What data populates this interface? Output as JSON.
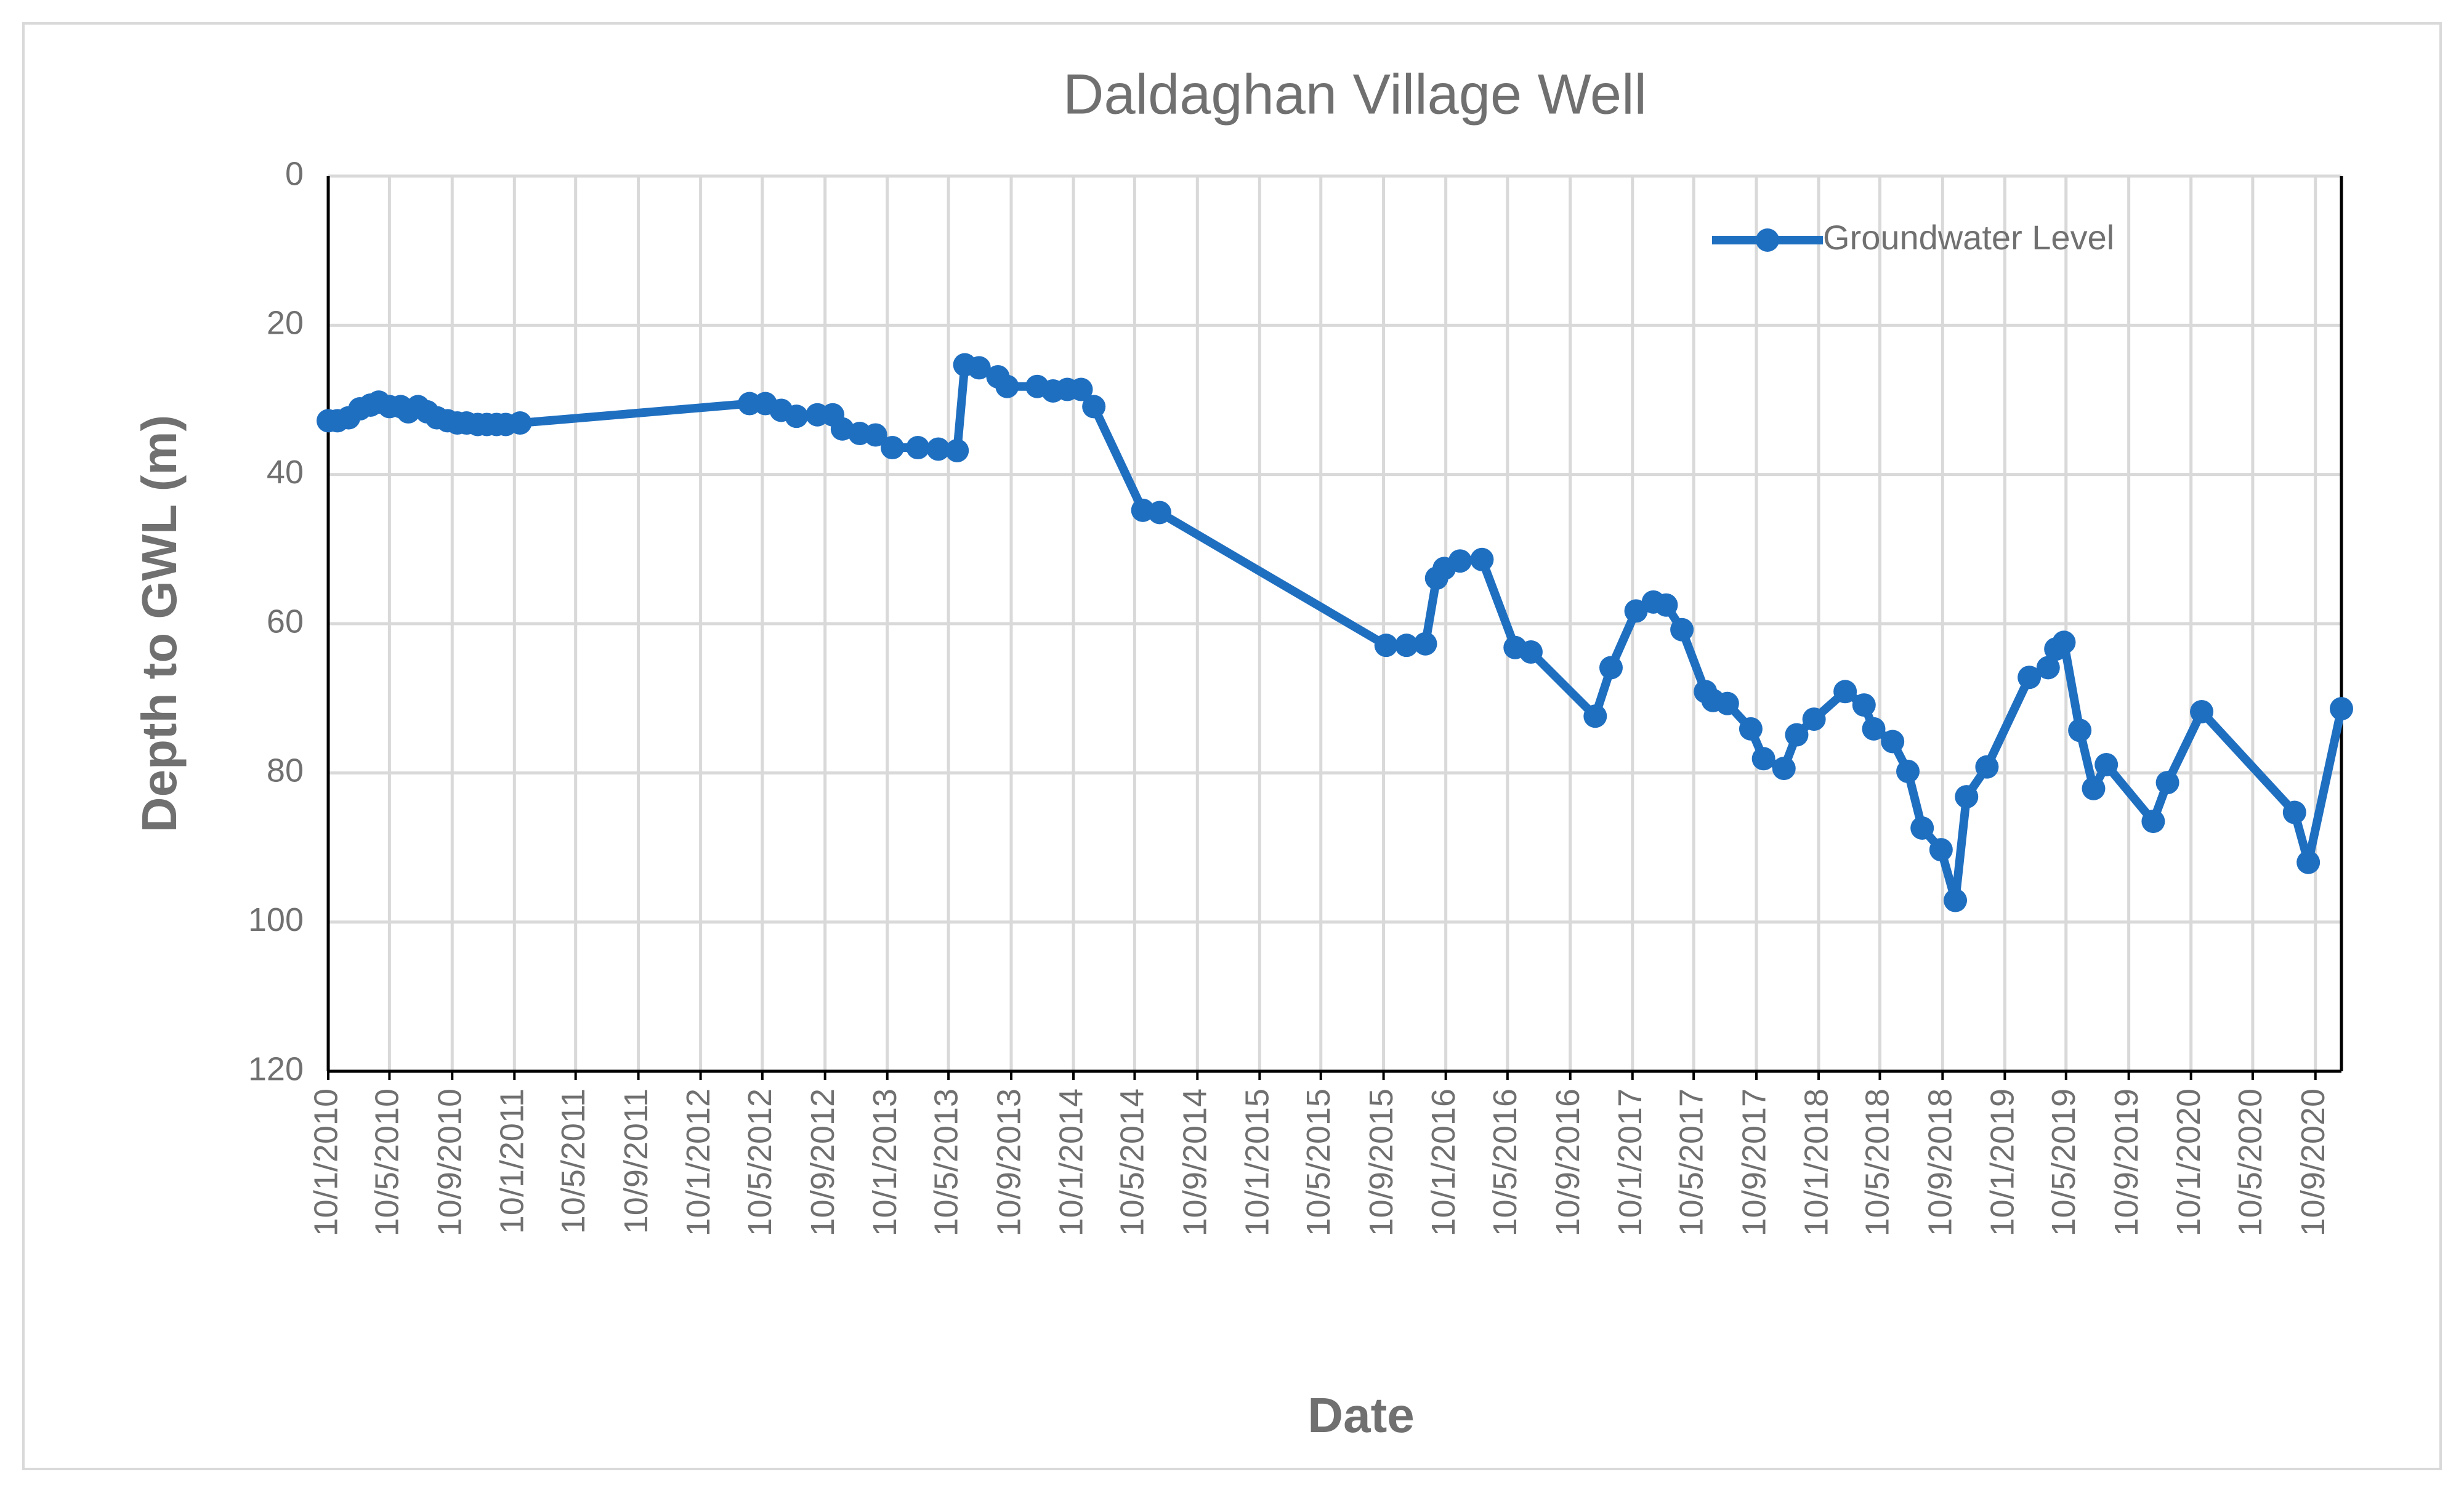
{
  "chart_data": {
    "type": "line",
    "title": "Daldaghan Village Well",
    "xlabel": "Date",
    "ylabel": "Depth to GWL (m)",
    "x": [
      "2010-01-10",
      "2010-01-28",
      "2010-02-19",
      "2010-03-13",
      "2010-04-03",
      "2010-04-19",
      "2010-05-10",
      "2010-06-01",
      "2010-06-16",
      "2010-07-05",
      "2010-07-23",
      "2010-08-11",
      "2010-09-01",
      "2010-09-20",
      "2010-10-08",
      "2010-10-30",
      "2010-11-17",
      "2010-12-06",
      "2010-12-24",
      "2011-01-21",
      "2012-04-15",
      "2012-05-16",
      "2012-06-16",
      "2012-07-16",
      "2012-08-26",
      "2012-09-25",
      "2012-10-14",
      "2012-11-17",
      "2012-12-18",
      "2013-01-20",
      "2013-03-11",
      "2013-04-20",
      "2013-05-27",
      "2013-06-11",
      "2013-07-09",
      "2013-08-15",
      "2013-09-02",
      "2013-10-31",
      "2013-12-01",
      "2013-12-29",
      "2014-01-25",
      "2014-02-19",
      "2014-05-26",
      "2014-06-28",
      "2015-09-15",
      "2015-10-25",
      "2015-12-01",
      "2015-12-23",
      "2016-01-07",
      "2016-02-07",
      "2016-03-21",
      "2016-05-25",
      "2016-06-25",
      "2016-10-29",
      "2016-11-29",
      "2017-01-17",
      "2017-02-20",
      "2017-03-17",
      "2017-04-17",
      "2017-06-02",
      "2017-06-17",
      "2017-07-15",
      "2017-08-30",
      "2017-09-24",
      "2017-11-03",
      "2017-11-28",
      "2018-01-01",
      "2018-03-03",
      "2018-04-09",
      "2018-04-28",
      "2018-06-04",
      "2018-07-04",
      "2018-08-01",
      "2018-09-07",
      "2018-10-05",
      "2018-10-27",
      "2018-12-06",
      "2019-02-27",
      "2019-04-05",
      "2019-04-20",
      "2019-05-06",
      "2019-06-06",
      "2019-07-03",
      "2019-07-28",
      "2019-10-28",
      "2019-11-25",
      "2020-01-31",
      "2020-07-31",
      "2020-08-27",
      "2020-10-31"
    ],
    "series": [
      {
        "name": "Groundwater Level",
        "color": "#1f6fc1",
        "values": [
          32.8,
          32.8,
          32.4,
          31.2,
          30.7,
          30.3,
          30.9,
          30.9,
          31.6,
          30.9,
          31.6,
          32.4,
          32.8,
          33.1,
          33.1,
          33.3,
          33.3,
          33.3,
          33.3,
          33.1,
          30.5,
          30.5,
          31.4,
          32.2,
          32.0,
          32.0,
          33.9,
          34.5,
          34.7,
          36.4,
          36.4,
          36.6,
          36.8,
          25.3,
          25.7,
          26.9,
          28.2,
          28.2,
          28.8,
          28.6,
          28.6,
          30.9,
          44.8,
          45.1,
          62.9,
          62.9,
          62.7,
          53.9,
          52.6,
          51.6,
          51.4,
          63.2,
          63.8,
          72.4,
          65.9,
          58.3,
          57.1,
          57.5,
          60.8,
          69.1,
          70.3,
          70.7,
          74.1,
          78.1,
          79.4,
          74.9,
          72.8,
          69.1,
          70.9,
          74.1,
          75.8,
          79.8,
          87.4,
          90.3,
          97.1,
          83.2,
          79.2,
          67.2,
          65.9,
          63.4,
          62.5,
          74.3,
          82.1,
          78.9,
          86.5,
          81.3,
          71.8,
          85.3,
          92.0,
          71.4
        ]
      }
    ],
    "xlim": [
      "2010-01-10",
      "2020-10-31"
    ],
    "xticks": [
      {
        "value": "2010-01-10",
        "label": "10/1/2010"
      },
      {
        "value": "2010-05-10",
        "label": "10/5/2010"
      },
      {
        "value": "2010-09-10",
        "label": "10/9/2010"
      },
      {
        "value": "2011-01-10",
        "label": "10/1/2011"
      },
      {
        "value": "2011-05-10",
        "label": "10/5/2011"
      },
      {
        "value": "2011-09-10",
        "label": "10/9/2011"
      },
      {
        "value": "2012-01-10",
        "label": "10/1/2012"
      },
      {
        "value": "2012-05-10",
        "label": "10/5/2012"
      },
      {
        "value": "2012-09-10",
        "label": "10/9/2012"
      },
      {
        "value": "2013-01-10",
        "label": "10/1/2013"
      },
      {
        "value": "2013-05-10",
        "label": "10/5/2013"
      },
      {
        "value": "2013-09-10",
        "label": "10/9/2013"
      },
      {
        "value": "2014-01-10",
        "label": "10/1/2014"
      },
      {
        "value": "2014-05-10",
        "label": "10/5/2014"
      },
      {
        "value": "2014-09-10",
        "label": "10/9/2014"
      },
      {
        "value": "2015-01-10",
        "label": "10/1/2015"
      },
      {
        "value": "2015-05-10",
        "label": "10/5/2015"
      },
      {
        "value": "2015-09-10",
        "label": "10/9/2015"
      },
      {
        "value": "2016-01-10",
        "label": "10/1/2016"
      },
      {
        "value": "2016-05-10",
        "label": "10/5/2016"
      },
      {
        "value": "2016-09-10",
        "label": "10/9/2016"
      },
      {
        "value": "2017-01-10",
        "label": "10/1/2017"
      },
      {
        "value": "2017-05-10",
        "label": "10/5/2017"
      },
      {
        "value": "2017-09-10",
        "label": "10/9/2017"
      },
      {
        "value": "2018-01-10",
        "label": "10/1/2018"
      },
      {
        "value": "2018-05-10",
        "label": "10/5/2018"
      },
      {
        "value": "2018-09-10",
        "label": "10/9/2018"
      },
      {
        "value": "2019-01-10",
        "label": "10/1/2019"
      },
      {
        "value": "2019-05-10",
        "label": "10/5/2019"
      },
      {
        "value": "2019-09-10",
        "label": "10/9/2019"
      },
      {
        "value": "2020-01-10",
        "label": "10/1/2020"
      },
      {
        "value": "2020-05-10",
        "label": "10/5/2020"
      },
      {
        "value": "2020-09-10",
        "label": "10/9/2020"
      }
    ],
    "ylim": [
      0,
      120
    ],
    "yticks": [
      0,
      20,
      40,
      60,
      80,
      100,
      120
    ],
    "y_inverted": true,
    "grid": true,
    "legend": "upper right"
  }
}
